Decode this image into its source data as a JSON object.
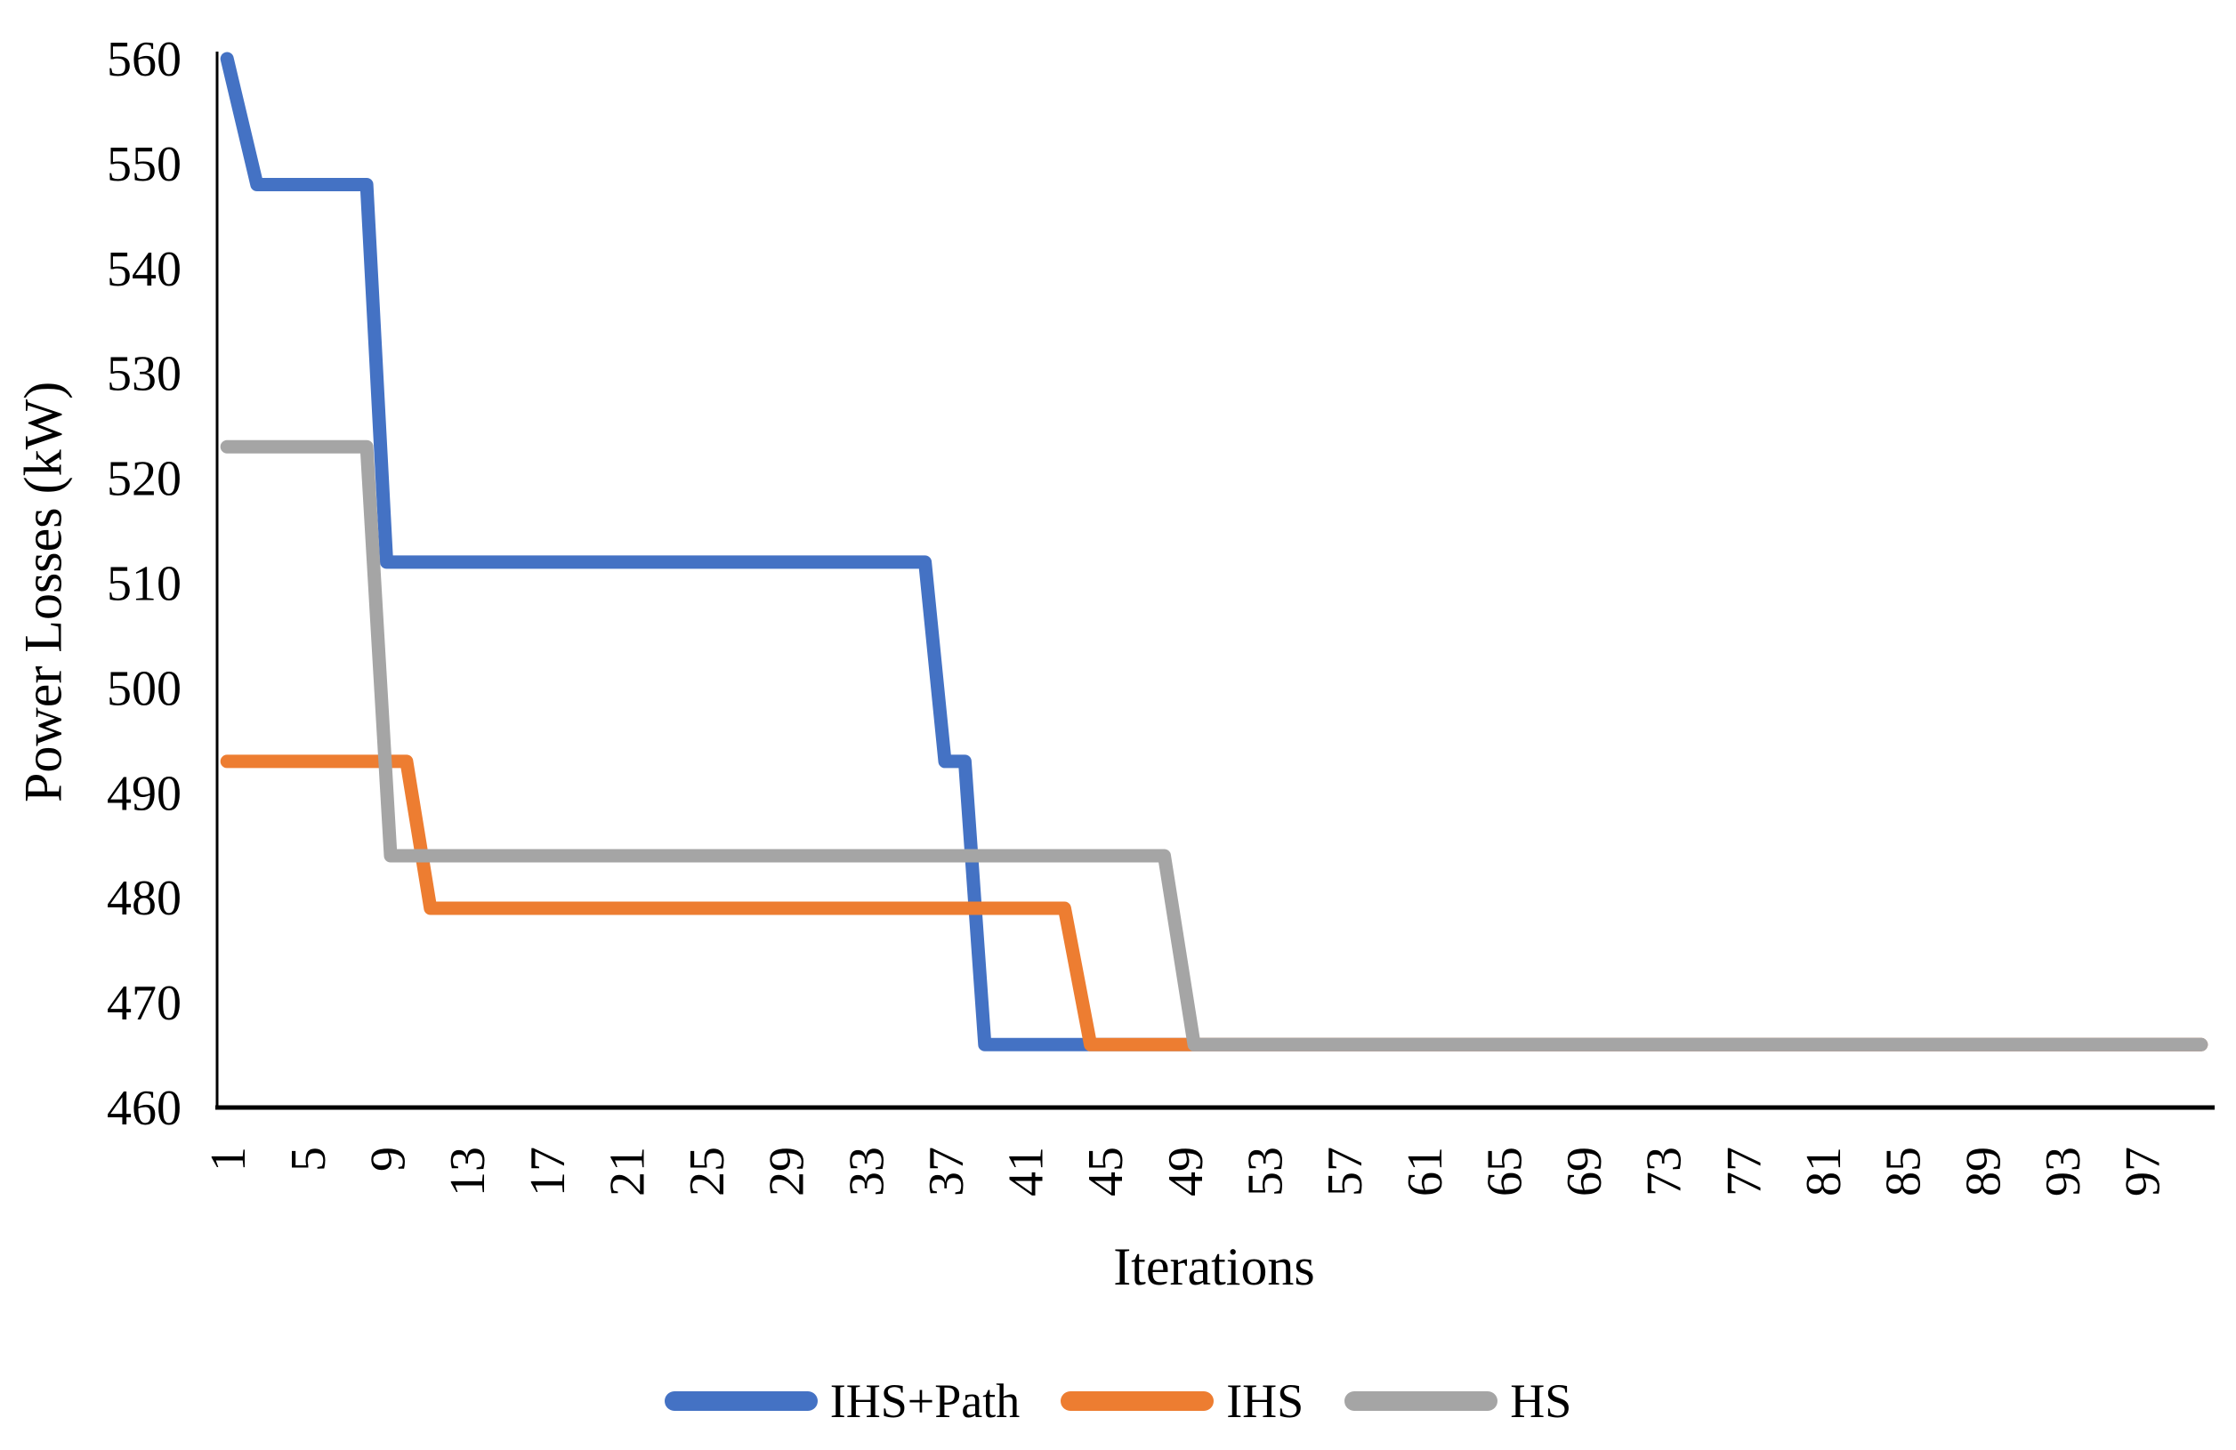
{
  "chart_data": {
    "type": "line",
    "title": "",
    "xlabel": "Iterations",
    "ylabel": "Power Losses (kW)",
    "x_ticks": [
      1,
      5,
      9,
      13,
      17,
      21,
      25,
      29,
      33,
      37,
      41,
      45,
      49,
      53,
      57,
      61,
      65,
      69,
      73,
      77,
      81,
      85,
      89,
      93,
      97
    ],
    "y_ticks": [
      460,
      470,
      480,
      490,
      500,
      510,
      520,
      530,
      540,
      550,
      560
    ],
    "xlim": [
      0.5,
      100.5
    ],
    "ylim": [
      460,
      560
    ],
    "grid": false,
    "legend_position": "bottom",
    "axis_color": "#000000",
    "line_width": 15,
    "series": [
      {
        "name": "IHS+Path",
        "color": "#4472C4",
        "points": [
          [
            1,
            560
          ],
          [
            2.5,
            548
          ],
          [
            8,
            548
          ],
          [
            9,
            512
          ],
          [
            36,
            512
          ],
          [
            37,
            493
          ],
          [
            38,
            493
          ],
          [
            39,
            466
          ],
          [
            100,
            466
          ]
        ]
      },
      {
        "name": "IHS",
        "color": "#ED7D31",
        "points": [
          [
            1,
            493
          ],
          [
            10,
            493
          ],
          [
            11.2,
            479
          ],
          [
            43,
            479
          ],
          [
            44.3,
            466
          ],
          [
            100,
            466
          ]
        ]
      },
      {
        "name": "HS",
        "color": "#A5A5A5",
        "points": [
          [
            1,
            523
          ],
          [
            8,
            523
          ],
          [
            9.2,
            484
          ],
          [
            48,
            484
          ],
          [
            49.5,
            466
          ],
          [
            100,
            466
          ]
        ]
      }
    ]
  }
}
